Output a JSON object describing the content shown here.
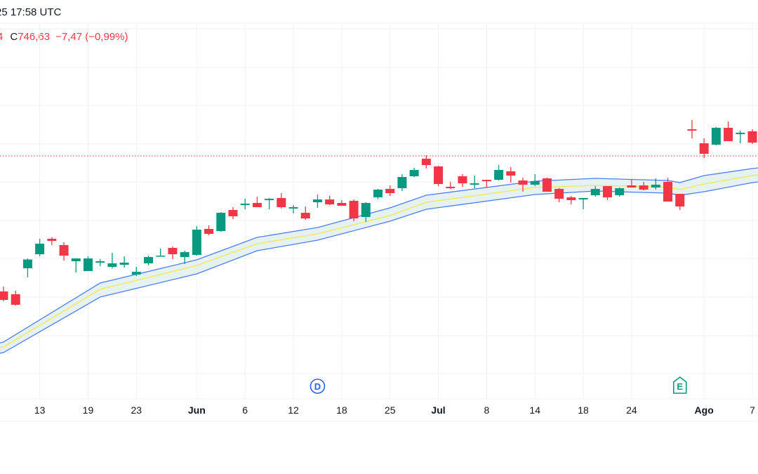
{
  "header": {
    "time_text": "25 17:58 UTC",
    "cut_value": "4",
    "close_label": "C",
    "close_value": "746,63",
    "change": "−7,47 (−0,99%)"
  },
  "colors": {
    "up": "#089981",
    "down": "#f23645",
    "band_line": "#4d7cf5",
    "band_fill": "#e3f1f1",
    "mid_line": "#f2e84c",
    "last_price_line": "#f23645",
    "dividend_marker": "#2962ff",
    "earnings_marker": "#089981"
  },
  "events": [
    {
      "label": "D",
      "type": "dividend",
      "date": "2025-06-16",
      "icon": "dividend-circle-icon"
    },
    {
      "label": "E",
      "type": "earnings",
      "date": "2025-07-30",
      "icon": "earnings-tag-icon"
    }
  ],
  "chart_data": {
    "type": "candlestick",
    "last_price": 746.63,
    "x_ticks": [
      {
        "label": "13",
        "date": "2025-05-13",
        "month": false
      },
      {
        "label": "19",
        "date": "2025-05-19",
        "month": false
      },
      {
        "label": "23",
        "date": "2025-05-23",
        "month": false
      },
      {
        "label": "Jun",
        "date": "2025-06-02",
        "month": true
      },
      {
        "label": "6",
        "date": "2025-06-06",
        "month": false
      },
      {
        "label": "12",
        "date": "2025-06-12",
        "month": false
      },
      {
        "label": "18",
        "date": "2025-06-18",
        "month": false
      },
      {
        "label": "25",
        "date": "2025-06-25",
        "month": false
      },
      {
        "label": "Jul",
        "date": "2025-07-01",
        "month": true
      },
      {
        "label": "8",
        "date": "2025-07-08",
        "month": false
      },
      {
        "label": "14",
        "date": "2025-07-14",
        "month": false
      },
      {
        "label": "18",
        "date": "2025-07-18",
        "month": false
      },
      {
        "label": "24",
        "date": "2025-07-24",
        "month": false
      },
      {
        "label": "Ago",
        "date": "2025-08-01",
        "month": true
      },
      {
        "label": "7",
        "date": "2025-08-07",
        "month": false
      }
    ],
    "candles": [
      [
        "2025-05-08",
        592.2,
        597.8,
        581.0,
        582.6
      ],
      [
        "2025-05-09",
        589.0,
        593.0,
        576.2,
        577.0
      ],
      [
        "2025-05-12",
        618.6,
        629.8,
        608.2,
        628.6
      ],
      [
        "2025-05-13",
        634.6,
        652.2,
        632.2,
        646.6
      ],
      [
        "2025-05-14",
        652.2,
        653.8,
        645.0,
        649.8
      ],
      [
        "2025-05-15",
        645.0,
        648.2,
        627.4,
        633.0
      ],
      [
        "2025-05-16",
        626.6,
        630.0,
        613.8,
        629.8
      ],
      [
        "2025-05-19",
        615.4,
        632.2,
        615.4,
        629.8
      ],
      [
        "2025-05-20",
        625.0,
        629.0,
        621.0,
        626.6
      ],
      [
        "2025-05-21",
        620.2,
        636.2,
        618.6,
        624.2
      ],
      [
        "2025-05-22",
        622.6,
        632.2,
        619.4,
        625.0
      ],
      [
        "2025-05-23",
        611.4,
        620.2,
        609.8,
        614.6
      ],
      [
        "2025-05-27",
        624.2,
        633.0,
        621.8,
        631.4
      ],
      [
        "2025-05-28",
        632.2,
        641.0,
        632.2,
        633.0
      ],
      [
        "2025-05-29",
        641.8,
        643.4,
        629.0,
        634.6
      ],
      [
        "2025-05-30",
        631.4,
        638.6,
        623.4,
        637.0
      ],
      [
        "2025-06-02",
        633.8,
        666.6,
        633.0,
        662.6
      ],
      [
        "2025-06-03",
        663.4,
        667.4,
        656.2,
        657.8
      ],
      [
        "2025-06-04",
        661.0,
        682.6,
        660.2,
        681.8
      ],
      [
        "2025-06-05",
        685.0,
        688.2,
        674.6,
        677.8
      ],
      [
        "2025-06-06",
        690.6,
        697.8,
        685.8,
        692.2
      ],
      [
        "2025-06-09",
        693.0,
        700.2,
        688.2,
        688.2
      ],
      [
        "2025-06-10",
        696.2,
        698.6,
        685.8,
        697.8
      ],
      [
        "2025-06-11",
        698.6,
        704.2,
        686.6,
        688.2
      ],
      [
        "2025-06-12",
        686.6,
        690.6,
        681.0,
        688.2
      ],
      [
        "2025-06-13",
        681.8,
        689.0,
        673.8,
        675.4
      ],
      [
        "2025-06-16",
        693.8,
        702.6,
        687.4,
        697.0
      ],
      [
        "2025-06-17",
        697.0,
        701.0,
        690.6,
        691.4
      ],
      [
        "2025-06-18",
        693.0,
        696.2,
        689.8,
        689.8
      ],
      [
        "2025-06-20",
        695.4,
        697.0,
        672.2,
        675.4
      ],
      [
        "2025-06-23",
        677.0,
        693.8,
        671.4,
        693.0
      ],
      [
        "2025-06-24",
        699.4,
        709.0,
        697.0,
        708.2
      ],
      [
        "2025-06-25",
        709.0,
        713.0,
        701.0,
        704.2
      ],
      [
        "2025-06-26",
        709.8,
        725.8,
        706.6,
        722.6
      ],
      [
        "2025-06-27",
        723.4,
        733.0,
        722.6,
        730.6
      ],
      [
        "2025-06-30",
        743.4,
        747.4,
        732.2,
        736.2
      ],
      [
        "2025-07-01",
        734.6,
        735.4,
        712.2,
        714.6
      ],
      [
        "2025-07-02",
        711.4,
        717.0,
        709.0,
        709.8
      ],
      [
        "2025-07-03",
        723.4,
        725.8,
        711.4,
        715.4
      ],
      [
        "2025-07-07",
        713.8,
        724.2,
        709.8,
        715.4
      ],
      [
        "2025-07-08",
        719.4,
        719.4,
        710.6,
        717.8
      ],
      [
        "2025-07-09",
        719.4,
        736.2,
        718.6,
        730.6
      ],
      [
        "2025-07-10",
        729.0,
        733.8,
        716.2,
        724.2
      ],
      [
        "2025-07-11",
        718.6,
        721.8,
        705.8,
        713.8
      ],
      [
        "2025-07-14",
        713.8,
        725.8,
        712.2,
        717.8
      ],
      [
        "2025-07-15",
        721.0,
        721.8,
        705.8,
        705.8
      ],
      [
        "2025-07-16",
        709.0,
        709.8,
        693.8,
        697.8
      ],
      [
        "2025-07-17",
        699.4,
        701.0,
        691.4,
        696.2
      ],
      [
        "2025-07-18",
        697.0,
        698.6,
        685.8,
        698.6
      ],
      [
        "2025-07-21",
        701.8,
        712.2,
        700.2,
        709.0
      ],
      [
        "2025-07-22",
        712.2,
        712.2,
        696.2,
        699.4
      ],
      [
        "2025-07-23",
        701.8,
        710.6,
        700.2,
        709.8
      ],
      [
        "2025-07-24",
        713.0,
        720.2,
        710.6,
        710.6
      ],
      [
        "2025-07-25",
        713.0,
        717.0,
        707.4,
        708.2
      ],
      [
        "2025-07-28",
        710.6,
        721.0,
        708.2,
        713.8
      ],
      [
        "2025-07-29",
        717.0,
        721.8,
        694.6,
        694.6
      ],
      [
        "2025-07-30",
        703.4,
        703.4,
        685.0,
        689.0
      ],
      [
        "2025-07-31",
        777.0,
        787.4,
        766.6,
        775.4
      ],
      [
        "2025-08-01",
        761.0,
        766.6,
        744.2,
        749.0
      ],
      [
        "2025-08-04",
        759.4,
        779.4,
        758.6,
        778.6
      ],
      [
        "2025-08-05",
        778.6,
        785.8,
        763.4,
        763.4
      ],
      [
        "2025-08-06",
        771.4,
        775.4,
        761.0,
        773.0
      ],
      [
        "2025-08-07",
        774.6,
        777.0,
        760.2,
        761.8
      ]
    ],
    "candle_fields": [
      "date",
      "open",
      "high",
      "low",
      "close"
    ],
    "bands": [
      [
        "2025-05-08",
        534.6,
        529.0,
        522.6
      ],
      [
        "2025-05-20",
        601.8,
        594.6,
        585.8
      ],
      [
        "2025-06-02",
        628.2,
        621.8,
        612.2
      ],
      [
        "2025-06-09",
        653.8,
        646.6,
        638.6
      ],
      [
        "2025-06-16",
        665.0,
        657.8,
        650.6
      ],
      [
        "2025-06-25",
        687.4,
        678.6,
        672.2
      ],
      [
        "2025-06-30",
        701.8,
        693.8,
        685.8
      ],
      [
        "2025-07-14",
        717.8,
        710.6,
        702.6
      ],
      [
        "2025-07-21",
        721.0,
        713.0,
        706.6
      ],
      [
        "2025-07-29",
        718.6,
        711.4,
        704.2
      ],
      [
        "2025-07-30",
        716.2,
        708.2,
        701.8
      ],
      [
        "2025-08-01",
        724.2,
        714.6,
        705.8
      ],
      [
        "2025-08-07",
        732.2,
        724.2,
        716.2
      ]
    ],
    "band_fields": [
      "date",
      "upper",
      "middle",
      "lower"
    ],
    "grid": true
  }
}
